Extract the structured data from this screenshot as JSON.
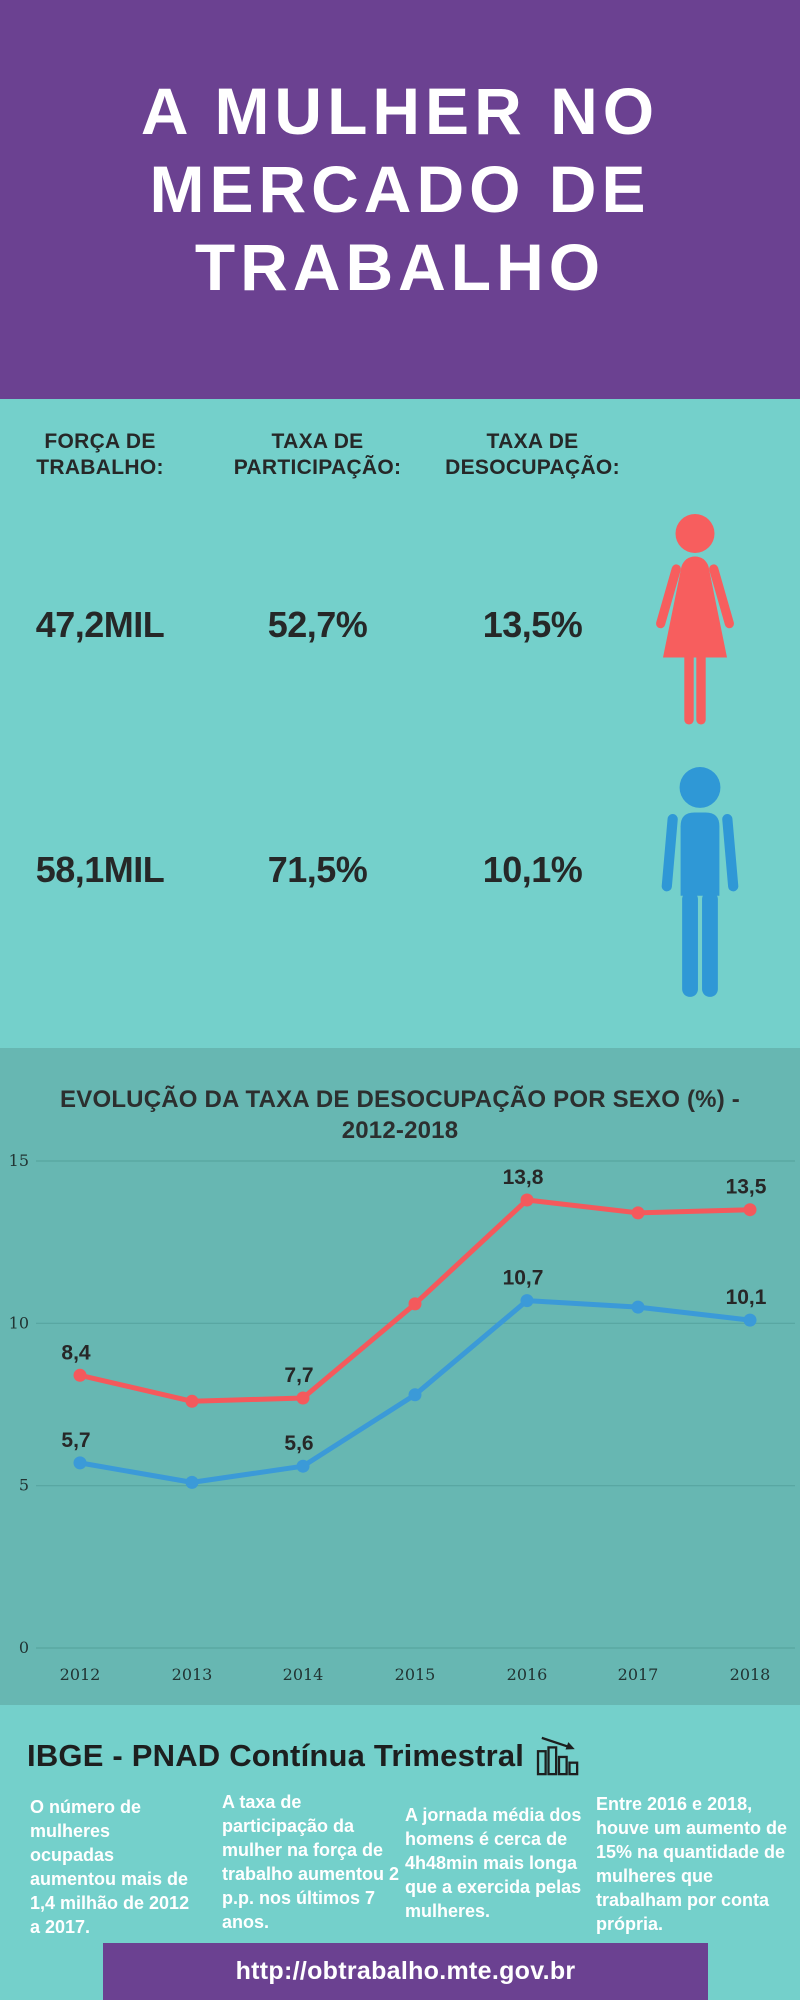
{
  "header": {
    "title_lines": [
      "A MULHER NO",
      "MERCADO DE",
      "TRABALHO"
    ]
  },
  "stats": {
    "column_headers": [
      "FORÇA DE TRABALHO:",
      "TAXA DE PARTICIPAÇÃO:",
      "TAXA DE DESOCUPAÇÃO:"
    ],
    "rows": [
      {
        "group": "mulheres",
        "icon": "female-icon",
        "values": [
          "47,2MIL",
          "52,7%",
          "13,5%"
        ]
      },
      {
        "group": "homens",
        "icon": "male-icon",
        "values": [
          "58,1MIL",
          "71,5%",
          "10,1%"
        ]
      }
    ]
  },
  "chart_data": {
    "type": "line",
    "title": "EVOLUÇÃO DA TAXA DE DESOCUPAÇÃO POR SEXO (%) - 2012-2018",
    "categories": [
      "2012",
      "2013",
      "2014",
      "2015",
      "2016",
      "2017",
      "2018"
    ],
    "series": [
      {
        "name": "Mulheres",
        "color": "#f4595c",
        "values": [
          8.4,
          7.6,
          7.7,
          10.6,
          13.8,
          13.4,
          13.5
        ],
        "point_labels": [
          "8,4",
          null,
          "7,7",
          null,
          "13,8",
          null,
          "13,5"
        ]
      },
      {
        "name": "Homens",
        "color": "#3b9ad8",
        "values": [
          5.7,
          5.1,
          5.6,
          7.8,
          10.7,
          10.5,
          10.1
        ],
        "point_labels": [
          "5,7",
          null,
          "5,6",
          null,
          "10,7",
          null,
          "10,1"
        ]
      }
    ],
    "xlabel": "",
    "ylabel": "",
    "ylim": [
      0,
      15
    ],
    "yticks": [
      0,
      5,
      10,
      15
    ],
    "grid": true,
    "legend_position": "none"
  },
  "source": {
    "heading": "IBGE - PNAD Contínua Trimestral",
    "icon": "declining-bar-chart-icon",
    "facts": [
      "O número de mulheres ocupadas aumentou mais de 1,4 milhão de 2012 a 2017.",
      "A taxa de participação da mulher na força de trabalho aumentou 2 p.p. nos últimos 7 anos.",
      "A jornada média dos homens é cerca de 4h48min mais longa que a exercida pelas mulheres.",
      "Entre 2016 e 2018, houve um aumento de 15% na quantidade de mulheres que trabalham por conta própria."
    ],
    "url": "http://obtrabalho.mte.gov.br"
  },
  "colors": {
    "header_purple": "#6b4191",
    "teal_light": "#74d0cb",
    "teal_dark": "#67b7b2",
    "female_coral": "#f75e5e",
    "male_blue": "#2f98d6",
    "women_line": "#f4595c",
    "men_line": "#3b9ad8",
    "text_dark": "#262828",
    "text_white": "#ffffff",
    "gridline": "#57a5a0"
  }
}
